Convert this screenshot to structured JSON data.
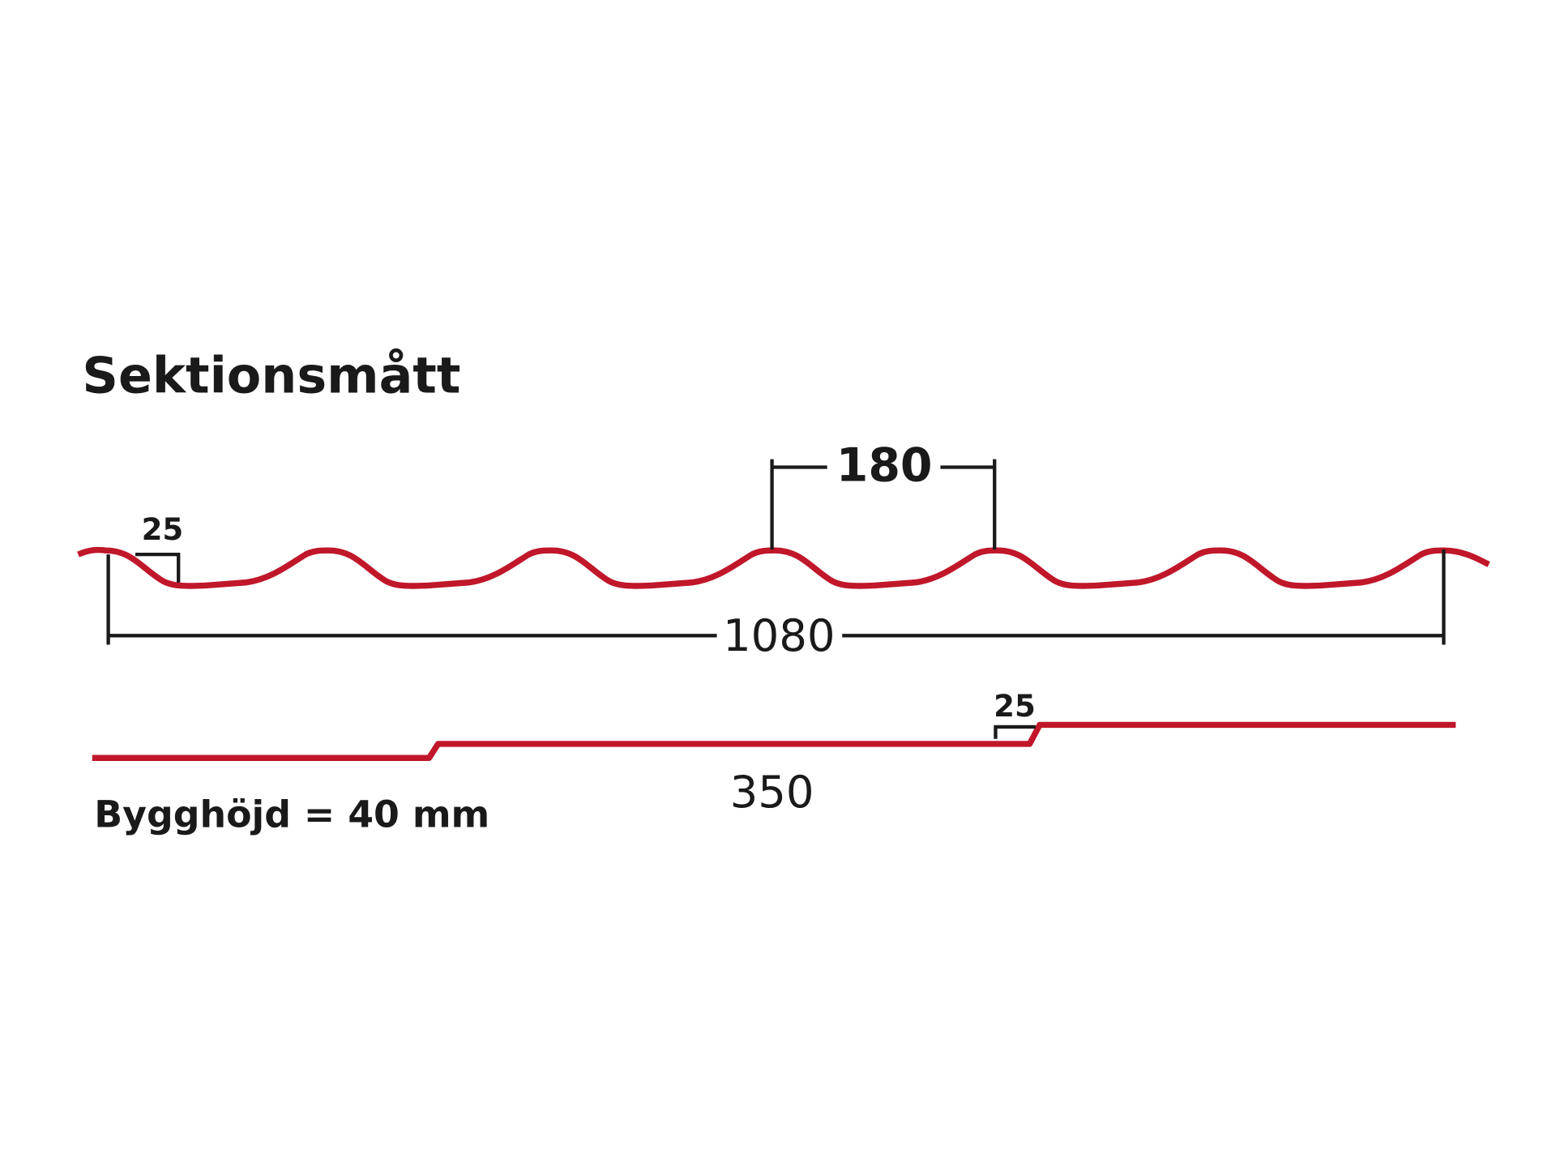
{
  "title": "Sektionsmått",
  "profile": {
    "pitch_label": "180",
    "height_label": "25",
    "width_label": "1080"
  },
  "step": {
    "height_label": "25",
    "length_label": "350"
  },
  "note": "Bygghöjd = 40 mm"
}
